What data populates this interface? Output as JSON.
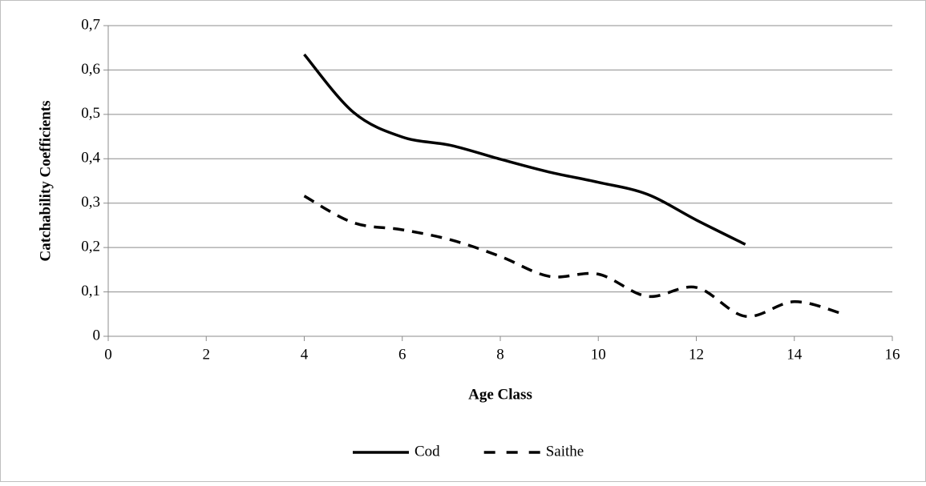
{
  "chart_data": {
    "type": "line",
    "xlabel": "Age Class",
    "ylabel": "Catchability Coefficients",
    "xlim": [
      0,
      16
    ],
    "xticks": [
      0,
      2,
      4,
      6,
      8,
      10,
      12,
      14,
      16
    ],
    "ylim": [
      0,
      0.7
    ],
    "yticks": [
      0,
      {
        "value": 0.1,
        "label": "0,1"
      },
      {
        "value": 0.2,
        "label": "0,2"
      },
      {
        "value": 0.3,
        "label": "0,3"
      },
      {
        "value": 0.4,
        "label": "0,4"
      },
      {
        "value": 0.5,
        "label": "0,5"
      },
      {
        "value": 0.6,
        "label": "0,6"
      },
      {
        "value": 0.7,
        "label": "0,7"
      }
    ],
    "grid": true,
    "legend": "bottom",
    "series": [
      {
        "name": "Cod",
        "color": "#000000",
        "dash": "solid",
        "x": [
          4,
          5,
          6,
          7,
          8,
          9,
          10,
          11,
          12,
          13
        ],
        "values": [
          0.635,
          0.505,
          0.449,
          0.43,
          0.399,
          0.37,
          0.347,
          0.32,
          0.262,
          0.207
        ]
      },
      {
        "name": "Saithe",
        "color": "#000000",
        "dash": "dashed",
        "x": [
          4,
          5,
          6,
          7,
          8,
          9,
          10,
          11,
          12,
          13,
          14,
          15
        ],
        "values": [
          0.316,
          0.256,
          0.24,
          0.217,
          0.18,
          0.135,
          0.14,
          0.09,
          0.11,
          0.045,
          0.078,
          0.05
        ]
      }
    ]
  }
}
